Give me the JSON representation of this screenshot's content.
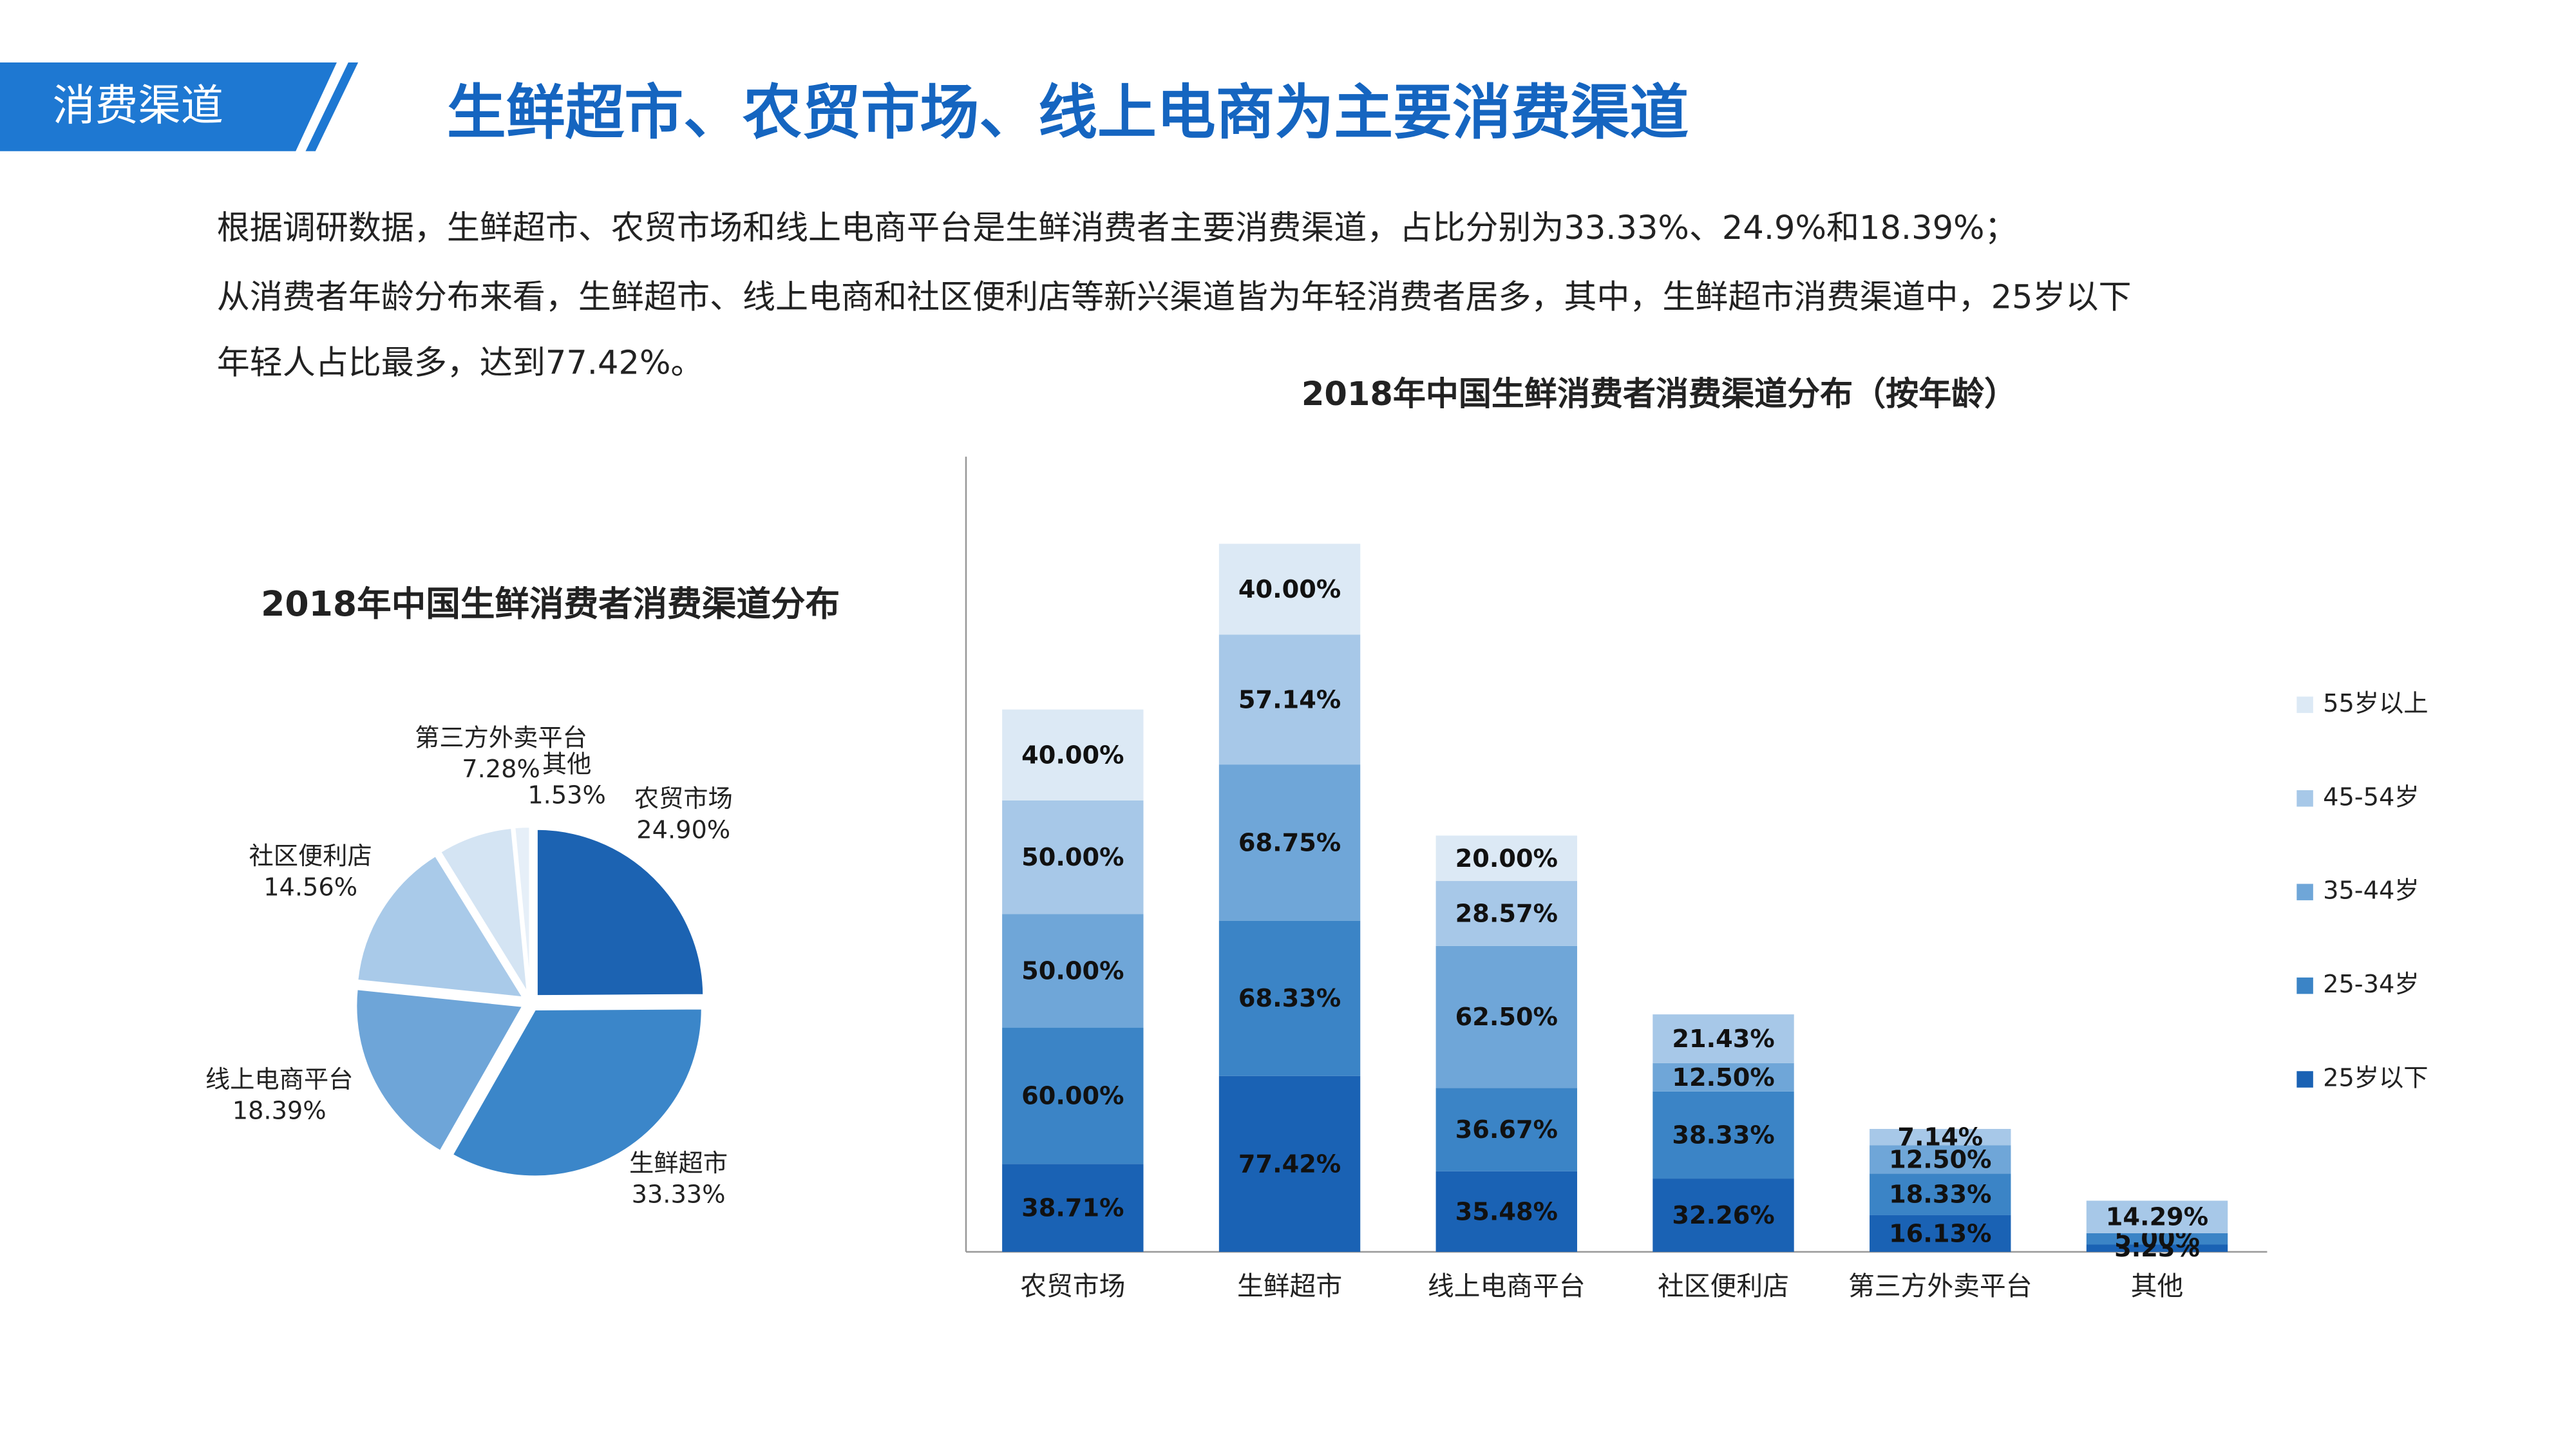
{
  "header": {
    "tag": "消费渠道",
    "title": "生鲜超市、农贸市场、线上电商为主要消费渠道"
  },
  "paragraph": [
    "根据调研数据，生鲜超市、农贸市场和线上电商平台是生鲜消费者主要消费渠道，占比分别为33.33%、24.9%和18.39%；",
    "从消费者年龄分布来看，生鲜超市、线上电商和社区便利店等新兴渠道皆为年轻消费者居多，其中，生鲜超市消费渠道中，25岁以下",
    "年轻人占比最多，达到77.42%。"
  ],
  "chart_data": [
    {
      "type": "pie",
      "title": "2018年中国生鲜消费者消费渠道分布",
      "categories": [
        "农贸市场",
        "生鲜超市",
        "线上电商平台",
        "社区便利店",
        "第三方外卖平台",
        "其他"
      ],
      "values": [
        24.9,
        33.33,
        18.39,
        14.56,
        7.28,
        1.53
      ],
      "value_labels": [
        "24.90%",
        "33.33%",
        "18.39%",
        "14.56%",
        "7.28%",
        "1.53%"
      ],
      "colors": [
        "#1c63b2",
        "#3b86c9",
        "#6ea5d8",
        "#a9cae9",
        "#d4e4f3",
        "#e6eff8"
      ]
    },
    {
      "type": "stacked_bar",
      "title": "2018年中国生鲜消费者消费渠道分布（按年龄）",
      "categories": [
        "农贸市场",
        "生鲜超市",
        "线上电商平台",
        "社区便利店",
        "第三方外卖平台",
        "其他"
      ],
      "series": [
        {
          "name": "25岁以下",
          "color": "#1a62b4",
          "values": [
            38.71,
            77.42,
            35.48,
            32.26,
            16.13,
            3.23
          ],
          "value_labels": [
            "38.71%",
            "77.42%",
            "35.48%",
            "32.26%",
            "16.13%",
            "3.23%"
          ]
        },
        {
          "name": "25-34岁",
          "color": "#3b84c6",
          "values": [
            60.0,
            68.33,
            36.67,
            38.33,
            18.33,
            5.0
          ],
          "value_labels": [
            "60.00%",
            "68.33%",
            "36.67%",
            "38.33%",
            "18.33%",
            "5.00%"
          ]
        },
        {
          "name": "35-44岁",
          "color": "#6fa6d8",
          "values": [
            50.0,
            68.75,
            62.5,
            12.5,
            12.5,
            null
          ],
          "value_labels": [
            "50.00%",
            "68.75%",
            "62.50%",
            "12.50%",
            "12.50%",
            null
          ]
        },
        {
          "name": "45-54岁",
          "color": "#a7c8e8",
          "values": [
            50.0,
            57.14,
            28.57,
            21.43,
            7.14,
            14.29
          ],
          "value_labels": [
            "50.00%",
            "57.14%",
            "28.57%",
            "21.43%",
            "7.14%",
            "14.29%"
          ]
        },
        {
          "name": "55岁以上",
          "color": "#dce9f5",
          "values": [
            40.0,
            40.0,
            20.0,
            null,
            null,
            null
          ],
          "value_labels": [
            "40.00%",
            "40.00%",
            "20.00%",
            null,
            null,
            null
          ]
        }
      ],
      "legend": "right"
    }
  ]
}
